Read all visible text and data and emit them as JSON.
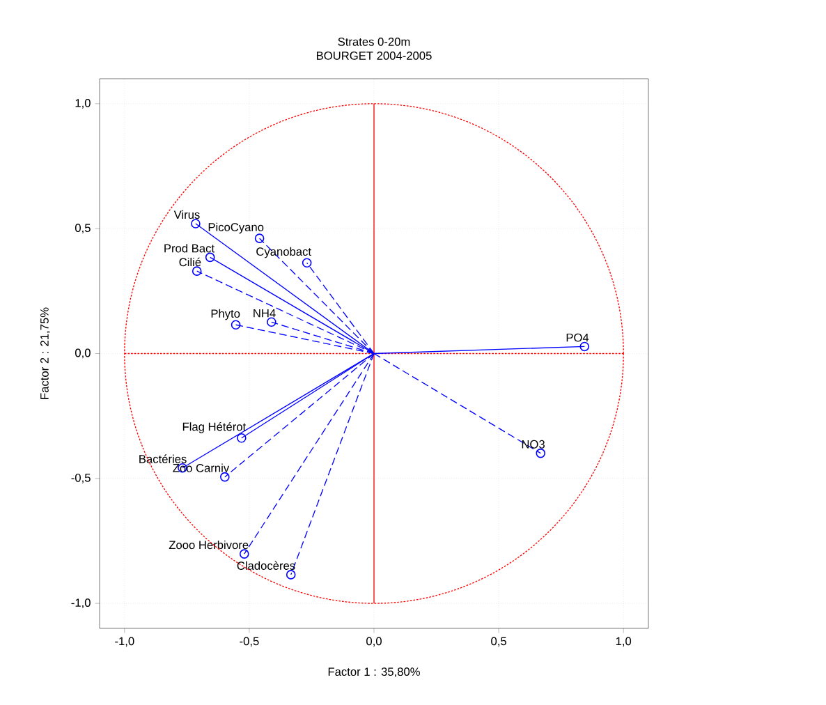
{
  "chart_data": {
    "type": "line",
    "title": "Strates 0-20m",
    "subtitle": "BOURGET 2004-2005",
    "xlabel": "Factor 1 : 35,80%",
    "ylabel": "Factor 2 : 21,75%",
    "xlim": [
      -1.1,
      1.1
    ],
    "ylim": [
      -1.1,
      1.1
    ],
    "xticks": [
      {
        "value": -1,
        "label": "-1,0"
      },
      {
        "value": -0.5,
        "label": "-0,5"
      },
      {
        "value": 0,
        "label": "0,0"
      },
      {
        "value": 0.5,
        "label": "0,5"
      },
      {
        "value": 1,
        "label": "1,0"
      }
    ],
    "yticks": [
      {
        "value": -1,
        "label": "-1,0"
      },
      {
        "value": -0.5,
        "label": "-0,5"
      },
      {
        "value": 0,
        "label": "0,0"
      },
      {
        "value": 0.5,
        "label": "0,5"
      },
      {
        "value": 1,
        "label": "1,0"
      }
    ],
    "grid": true,
    "marker": "circle",
    "series": [
      {
        "color": "#ff0000",
        "line_style": "dotted",
        "marker": "none",
        "x": [
          -1,
          1
        ],
        "values": [
          0,
          0
        ]
      },
      {
        "color": "#ff0000",
        "line_style": "solid",
        "marker": "none",
        "x": [
          0,
          0
        ],
        "values": [
          -1,
          1
        ]
      },
      {
        "name": "Virus",
        "color": "#0000ff",
        "line_style": "solid",
        "x": [
          0,
          -0.715
        ],
        "values": [
          0,
          0.52
        ]
      },
      {
        "name": "PicoCyano",
        "color": "#0000ff",
        "line_style": "dashed",
        "x": [
          0,
          -0.459
        ],
        "values": [
          0,
          0.461
        ]
      },
      {
        "name": "Cyanobact",
        "color": "#0000ff",
        "line_style": "dashed",
        "x": [
          0,
          -0.269
        ],
        "values": [
          0,
          0.363
        ]
      },
      {
        "name": "Prod Bact",
        "color": "#0000ff",
        "line_style": "solid",
        "x": [
          0,
          -0.657
        ],
        "values": [
          0,
          0.385
        ]
      },
      {
        "name": "Cilié",
        "color": "#0000ff",
        "line_style": "dashed",
        "x": [
          0,
          -0.71
        ],
        "values": [
          0,
          0.33
        ]
      },
      {
        "name": "Phyto",
        "color": "#0000ff",
        "line_style": "dashed",
        "x": [
          0,
          -0.554
        ],
        "values": [
          0,
          0.115
        ]
      },
      {
        "name": "NH4",
        "color": "#0000ff",
        "line_style": "dashed",
        "x": [
          0,
          -0.411
        ],
        "values": [
          0,
          0.126
        ]
      },
      {
        "name": "PO4",
        "color": "#0000ff",
        "line_style": "solid",
        "x": [
          0,
          0.844
        ],
        "values": [
          0,
          0.028
        ]
      },
      {
        "name": "NO3",
        "color": "#0000ff",
        "line_style": "dashed",
        "x": [
          0,
          0.668
        ],
        "values": [
          0,
          -0.399
        ]
      },
      {
        "name": "Flag Hétérot",
        "color": "#0000ff",
        "line_style": "solid",
        "x": [
          0,
          -0.531
        ],
        "values": [
          0,
          -0.338
        ]
      },
      {
        "name": "Bactéries",
        "color": "#0000ff",
        "line_style": "solid",
        "x": [
          0,
          -0.768
        ],
        "values": [
          0,
          -0.458
        ]
      },
      {
        "name": "Zoo Carniv",
        "color": "#0000ff",
        "line_style": "dashed",
        "x": [
          0,
          -0.598
        ],
        "values": [
          0,
          -0.494
        ]
      },
      {
        "name": "Zooo Herbivore",
        "color": "#0000ff",
        "line_style": "dashed",
        "x": [
          0,
          -0.52
        ],
        "values": [
          0,
          -0.802
        ]
      },
      {
        "name": "Cladocères",
        "color": "#0000ff",
        "line_style": "dashed",
        "x": [
          0,
          -0.333
        ],
        "values": [
          0,
          -0.885
        ]
      }
    ]
  }
}
